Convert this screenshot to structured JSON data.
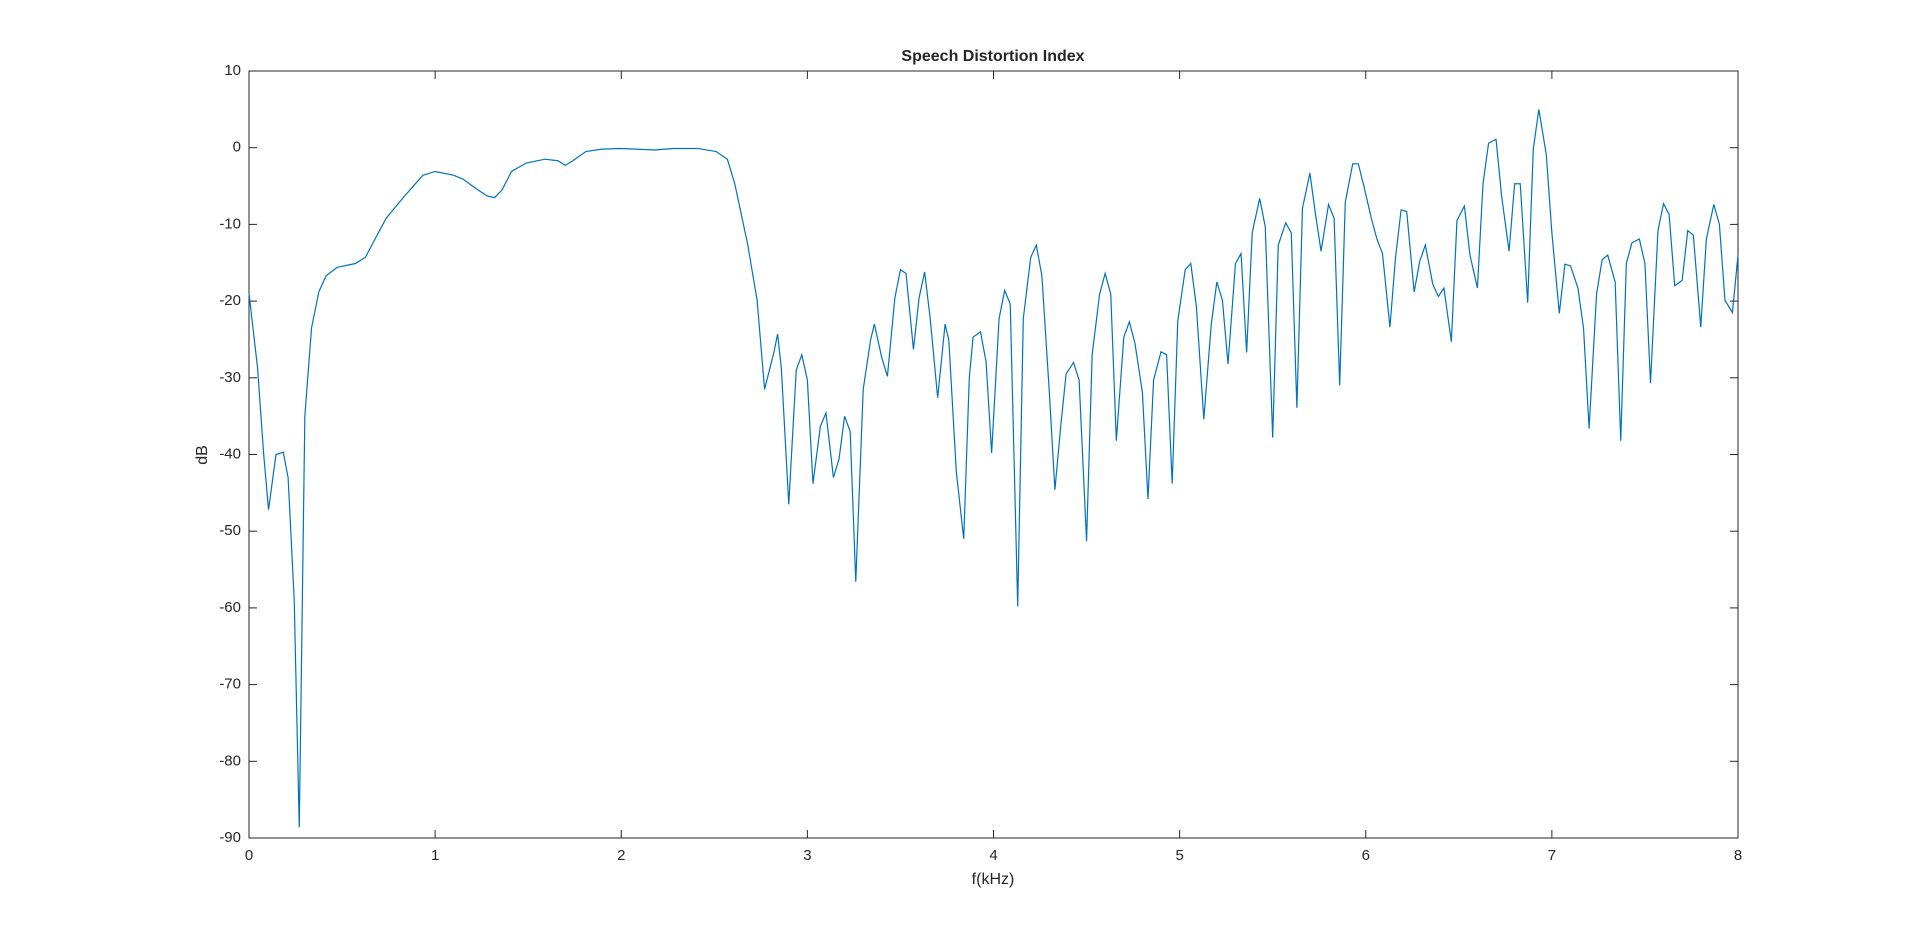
{
  "chart_data": {
    "type": "line",
    "title": "Speech Distortion Index",
    "xlabel": "f(kHz)",
    "ylabel": "dB",
    "color": "#0072bd",
    "xlim": [
      0,
      8
    ],
    "ylim": [
      -90,
      10
    ],
    "xticks": [
      0,
      1,
      2,
      3,
      4,
      5,
      6,
      7,
      8
    ],
    "yticks": [
      -90,
      -80,
      -70,
      -60,
      -50,
      -40,
      -30,
      -20,
      -10,
      0,
      10
    ],
    "grid": false,
    "x": [
      0,
      0.046,
      0.079,
      0.105,
      0.145,
      0.184,
      0.21,
      0.243,
      0.27,
      0.3,
      0.336,
      0.375,
      0.414,
      0.474,
      0.572,
      0.625,
      0.66,
      0.737,
      0.836,
      0.934,
      1.0,
      1.1,
      1.15,
      1.23,
      1.28,
      1.32,
      1.36,
      1.41,
      1.49,
      1.59,
      1.66,
      1.7,
      1.74,
      1.81,
      1.89,
      1.99,
      2.09,
      2.18,
      2.28,
      2.41,
      2.51,
      2.57,
      2.61,
      2.68,
      2.73,
      2.77,
      2.82,
      2.84,
      2.86,
      2.9,
      2.94,
      2.97,
      3.0,
      3.03,
      3.07,
      3.1,
      3.14,
      3.17,
      3.2,
      3.23,
      3.26,
      3.3,
      3.34,
      3.36,
      3.4,
      3.43,
      3.47,
      3.5,
      3.53,
      3.57,
      3.6,
      3.63,
      3.66,
      3.7,
      3.74,
      3.76,
      3.8,
      3.84,
      3.87,
      3.89,
      3.93,
      3.96,
      3.99,
      4.03,
      4.06,
      4.09,
      4.13,
      4.16,
      4.2,
      4.23,
      4.26,
      4.3,
      4.33,
      4.36,
      4.39,
      4.43,
      4.46,
      4.5,
      4.53,
      4.57,
      4.6,
      4.63,
      4.66,
      4.7,
      4.73,
      4.76,
      4.8,
      4.83,
      4.86,
      4.9,
      4.93,
      4.96,
      4.99,
      5.03,
      5.06,
      5.09,
      5.13,
      5.17,
      5.2,
      5.23,
      5.26,
      5.3,
      5.33,
      5.36,
      5.39,
      5.43,
      5.46,
      5.5,
      5.53,
      5.57,
      5.6,
      5.63,
      5.66,
      5.7,
      5.73,
      5.76,
      5.8,
      5.83,
      5.86,
      5.89,
      5.93,
      5.96,
      5.99,
      6.03,
      6.06,
      6.09,
      6.13,
      6.16,
      6.19,
      6.22,
      6.26,
      6.29,
      6.32,
      6.36,
      6.39,
      6.42,
      6.46,
      6.49,
      6.53,
      6.56,
      6.6,
      6.63,
      6.66,
      6.7,
      6.73,
      6.77,
      6.8,
      6.83,
      6.87,
      6.9,
      6.93,
      6.97,
      7.0,
      7.04,
      7.07,
      7.1,
      7.14,
      7.17,
      7.2,
      7.24,
      7.27,
      7.3,
      7.34,
      7.37,
      7.4,
      7.43,
      7.47,
      7.5,
      7.53,
      7.57,
      7.6,
      7.63,
      7.66,
      7.7,
      7.73,
      7.76,
      7.8,
      7.83,
      7.87,
      7.9,
      7.93,
      7.97,
      8.0
    ],
    "values": [
      -19,
      -28.7,
      -40,
      -47.2,
      -40,
      -39.7,
      -43,
      -59,
      -88.6,
      -35,
      -23.5,
      -18.8,
      -16.7,
      -15.6,
      -15.1,
      -14.3,
      -12.7,
      -9.2,
      -6.3,
      -3.6,
      -3.1,
      -3.6,
      -4.1,
      -5.5,
      -6.3,
      -6.5,
      -5.5,
      -3.1,
      -2.0,
      -1.5,
      -1.7,
      -2.3,
      -1.7,
      -0.5,
      -0.2,
      -0.1,
      -0.2,
      -0.3,
      -0.1,
      -0.1,
      -0.5,
      -1.5,
      -4.7,
      -12.7,
      -19.9,
      -31.5,
      -26.7,
      -24.3,
      -28.7,
      -46.5,
      -29,
      -27,
      -30.3,
      -43.8,
      -36.3,
      -34.6,
      -43,
      -40.6,
      -35,
      -37,
      -56.6,
      -31.5,
      -25,
      -23,
      -27.4,
      -29.8,
      -19.6,
      -15.9,
      -16.4,
      -26.3,
      -19.6,
      -16.2,
      -22.3,
      -32.6,
      -23,
      -25.1,
      -42.2,
      -51,
      -30,
      -24.7,
      -24,
      -27.9,
      -39.8,
      -22.3,
      -18.6,
      -20.4,
      -59.8,
      -22.3,
      -14.3,
      -12.7,
      -16.7,
      -31.9,
      -44.6,
      -36.6,
      -29.5,
      -28,
      -30.3,
      -51.3,
      -27,
      -19.1,
      -16.4,
      -19.1,
      -38.2,
      -24.7,
      -22.7,
      -25.5,
      -31.9,
      -45.8,
      -30.3,
      -26.6,
      -27,
      -43.8,
      -22.6,
      -15.9,
      -15.1,
      -20.7,
      -35.4,
      -23,
      -17.5,
      -19.9,
      -28.2,
      -15.1,
      -13.8,
      -26.7,
      -11.1,
      -6.6,
      -10.3,
      -37.8,
      -12.7,
      -9.8,
      -11.1,
      -33.9,
      -7.9,
      -3.3,
      -8.7,
      -13.5,
      -7.4,
      -9.2,
      -31,
      -7.1,
      -2.1,
      -2.1,
      -5,
      -9.2,
      -11.9,
      -13.8,
      -23.4,
      -14.3,
      -8.1,
      -8.3,
      -18.8,
      -14.8,
      -12.7,
      -17.8,
      -19.4,
      -18.3,
      -25.3,
      -9.5,
      -7.6,
      -14,
      -18.3,
      -4.7,
      0.6,
      1.1,
      -6.3,
      -13.5,
      -4.7,
      -4.7,
      -20.2,
      -0.2,
      5,
      -0.9,
      -11.1,
      -21.6,
      -15.2,
      -15.4,
      -18.3,
      -23.5,
      -36.6,
      -19.1,
      -14.6,
      -14,
      -17.5,
      -38.2,
      -15.1,
      -12.4,
      -11.9,
      -15.1,
      -30.7,
      -10.8,
      -7.3,
      -8.7,
      -18,
      -17.3,
      -10.8,
      -11.4,
      -23.4,
      -11.9,
      -7.4,
      -10,
      -19.9,
      -21.5,
      -14
    ]
  }
}
